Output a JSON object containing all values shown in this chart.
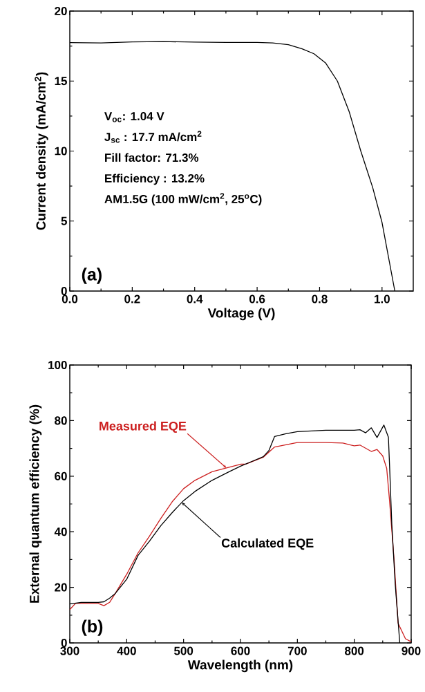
{
  "chart_data": [
    {
      "type": "line",
      "xlabel": "Voltage (V)",
      "ylabel": "Current density (mA/cm$^{2}$)",
      "xlim": [
        0,
        1.1
      ],
      "ylim": [
        0,
        20
      ],
      "xticks": [
        {
          "value": 0,
          "label": "0.0"
        },
        {
          "value": 0.2,
          "label": "0.2"
        },
        {
          "value": 0.4,
          "label": "0.4"
        },
        {
          "value": 0.6,
          "label": "0.6"
        },
        {
          "value": 0.8,
          "label": "0.8"
        },
        {
          "value": 1.0,
          "label": "1.0"
        }
      ],
      "yticks": [
        0,
        5,
        10,
        15,
        20
      ],
      "series": [
        {
          "color": "#000000",
          "x": [
            0,
            0.1,
            0.2,
            0.3,
            0.4,
            0.5,
            0.6,
            0.65,
            0.7,
            0.744,
            0.782,
            0.819,
            0.857,
            0.895,
            0.932,
            0.97,
            1.0,
            1.041
          ],
          "values": [
            17.75,
            17.72,
            17.8,
            17.82,
            17.78,
            17.76,
            17.76,
            17.72,
            17.6,
            17.3,
            16.95,
            16.3,
            15.0,
            12.8,
            10.0,
            7.4,
            4.9,
            0
          ]
        }
      ],
      "annotations": [
        "(a)",
        "V$_{oc}$: 1.04 V",
        "J$_{sc}$ : 17.7 mA/cm$^{2}$",
        "Fill factor: 71.3%",
        "Efficiency : 13.2%",
        "AM1.5G (100 mW/cm$^{2}$, 25$^{o}$C)"
      ]
    },
    {
      "type": "line",
      "xlabel": "Wavelength (nm)",
      "ylabel": "External quantum efficiency (%)",
      "xlim": [
        300,
        900
      ],
      "ylim": [
        0,
        100
      ],
      "xticks": [
        300,
        400,
        500,
        600,
        700,
        800,
        900
      ],
      "yticks": [
        0,
        20,
        40,
        60,
        80,
        100
      ],
      "series": [
        {
          "color": "#cc1f1f",
          "x": [
            300,
            310,
            330,
            350,
            360,
            370,
            380,
            400,
            420,
            440,
            460,
            480,
            500,
            520,
            550,
            580,
            600,
            610,
            640,
            660,
            680,
            700,
            750,
            780,
            800,
            810,
            830,
            840,
            850,
            857,
            862,
            870,
            877,
            890,
            900
          ],
          "values": [
            12.0,
            14.2,
            14.2,
            14.2,
            13.4,
            14.6,
            17.8,
            24.7,
            32.4,
            38.4,
            44.8,
            50.8,
            55.5,
            58.5,
            61.6,
            63.2,
            64.3,
            64.4,
            66.8,
            70.5,
            71.3,
            72.1,
            72.1,
            71.9,
            70.9,
            71.2,
            68.9,
            69.6,
            67.3,
            62.8,
            51.2,
            29.8,
            7.1,
            1.5,
            0.4
          ]
        },
        {
          "color": "#000000",
          "x": [
            300,
            320,
            350,
            360,
            370,
            380,
            400,
            420,
            440,
            460,
            480,
            500,
            520,
            550,
            580,
            600,
            620,
            640,
            650,
            660,
            680,
            700,
            750,
            800,
            810,
            820,
            830,
            840,
            852,
            860,
            862,
            866,
            872,
            880
          ],
          "values": [
            14.0,
            14.6,
            14.6,
            14.8,
            16.1,
            17.8,
            22.9,
            31.5,
            36.6,
            42.2,
            46.9,
            51.2,
            54.5,
            58.5,
            61.6,
            63.6,
            65.3,
            67.0,
            69.2,
            74.3,
            75.3,
            76.0,
            76.5,
            76.5,
            76.7,
            75.6,
            77.4,
            73.9,
            78.4,
            74.0,
            64.0,
            42.6,
            21.0,
            0
          ]
        }
      ],
      "annotations": [
        "(b)",
        {
          "text": "Measured EQE",
          "x": 575,
          "y": 63
        },
        {
          "text": "Calculated EQE",
          "x": 497,
          "y": 50.5
        }
      ]
    }
  ]
}
